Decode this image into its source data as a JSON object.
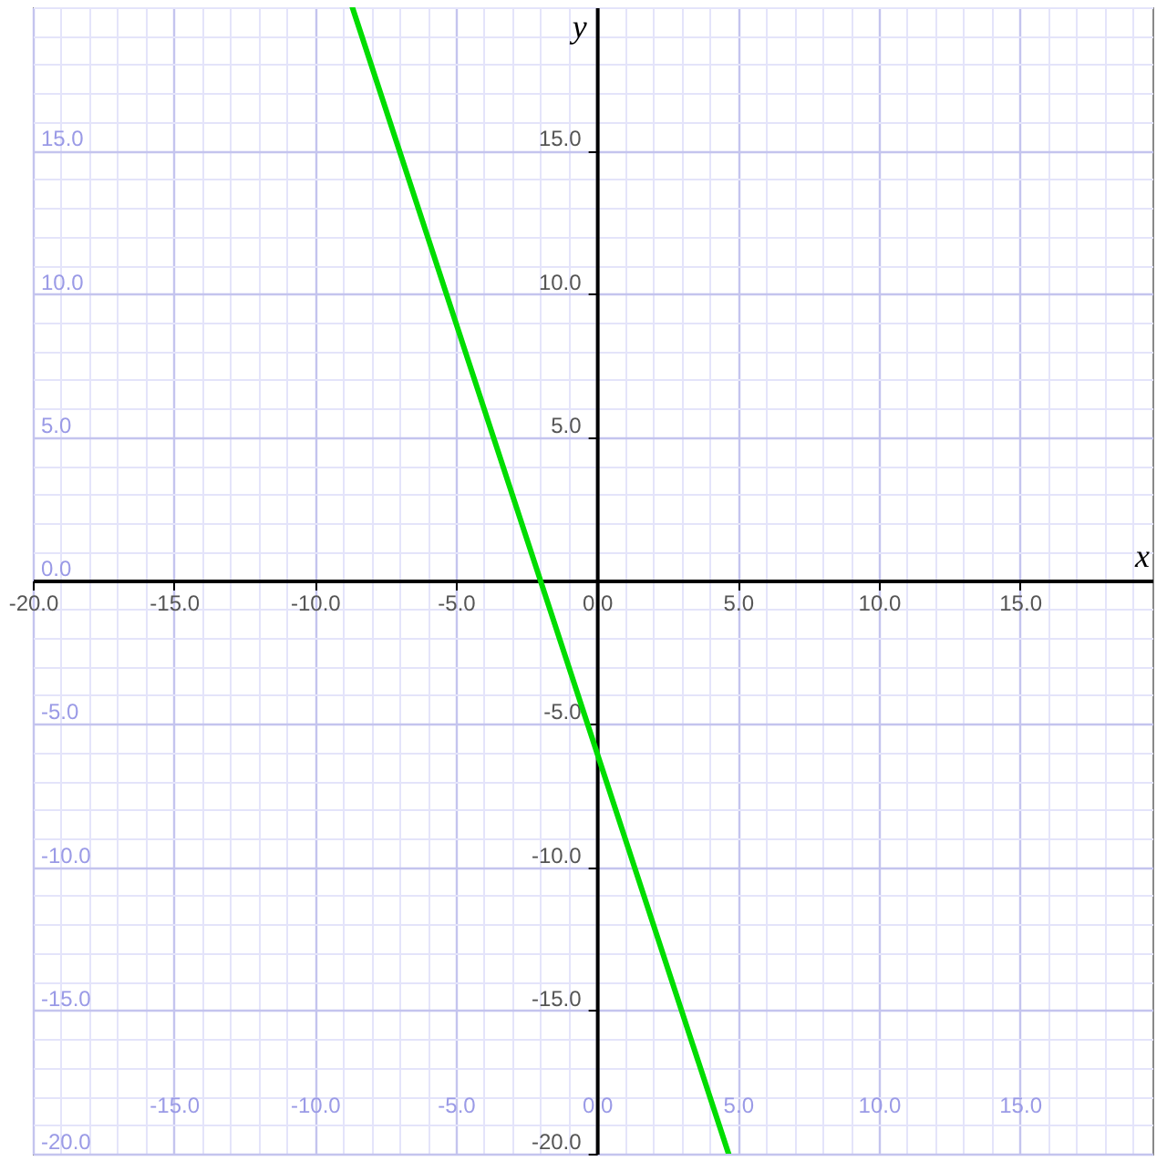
{
  "chart_data": {
    "type": "line",
    "xlabel": "x",
    "ylabel": "y",
    "xlim": [
      -20,
      19.7
    ],
    "ylim": [
      -20,
      20
    ],
    "xticks": [
      {
        "value": -20,
        "label": "-20.0"
      },
      {
        "value": -15,
        "label": "-15.0"
      },
      {
        "value": -10,
        "label": "-10.0"
      },
      {
        "value": -5,
        "label": "-5.0"
      },
      {
        "value": 0,
        "label": "0.0"
      },
      {
        "value": 5,
        "label": "5.0"
      },
      {
        "value": 10,
        "label": "10.0"
      },
      {
        "value": 15,
        "label": "15.0"
      }
    ],
    "yticks": [
      {
        "value": -20,
        "label": "-20.0"
      },
      {
        "value": -15,
        "label": "-15.0"
      },
      {
        "value": -10,
        "label": "-10.0"
      },
      {
        "value": -5,
        "label": "-5.0"
      },
      {
        "value": 5,
        "label": "5.0"
      },
      {
        "value": 10,
        "label": "10.0"
      },
      {
        "value": 15,
        "label": "15.0"
      }
    ],
    "x2lim": [
      -20,
      19.7
    ],
    "x2ticks": [
      {
        "value": -15,
        "label": "-15.0"
      },
      {
        "value": -10,
        "label": "-10.0"
      },
      {
        "value": -5,
        "label": "-5.0"
      },
      {
        "value": 0,
        "label": "0.0"
      },
      {
        "value": 5,
        "label": "5.0"
      },
      {
        "value": 10,
        "label": "10.0"
      },
      {
        "value": 15,
        "label": "15.0"
      }
    ],
    "y2lim": [
      -20,
      20
    ],
    "y2ticks": [
      {
        "value": -20,
        "label": "-20.0"
      },
      {
        "value": -15,
        "label": "-15.0"
      },
      {
        "value": -10,
        "label": "-10.0"
      },
      {
        "value": -5,
        "label": "-5.0"
      },
      {
        "value": 0,
        "label": "0.0"
      },
      {
        "value": 5,
        "label": "5.0"
      },
      {
        "value": 10,
        "label": "10.0"
      },
      {
        "value": 15,
        "label": "15.0"
      }
    ],
    "grid": true,
    "marker": "none",
    "line_style": "solid",
    "series": [
      {
        "color": "#00dd00",
        "x": [
          -8.67,
          4.67
        ],
        "values": [
          20,
          -20
        ]
      }
    ]
  }
}
